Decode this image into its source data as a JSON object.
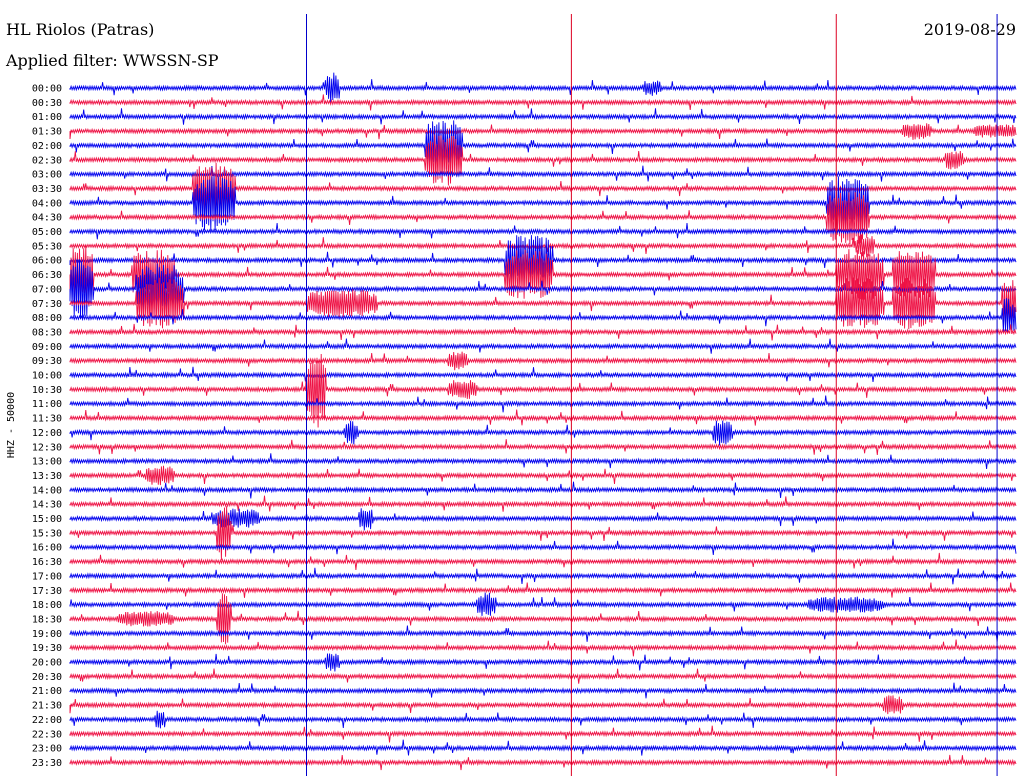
{
  "header": {
    "station": "HL Riolos (Patras)",
    "filter": "Applied filter: WWSSN-SP",
    "date": "2019-08-29"
  },
  "chart_data": {
    "type": "line",
    "title": "HL Riolos (Patras)",
    "subtitle": "Applied filter: WWSSN-SP",
    "ylabel": "HHZ - 50000",
    "xlabel": "",
    "colors": {
      "even_row": "#0000ee",
      "odd_row": "#ee1144",
      "marker": "#0000cc",
      "marker_red": "#dd0022"
    },
    "rows": [
      "00:00",
      "00:30",
      "01:00",
      "01:30",
      "02:00",
      "02:30",
      "03:00",
      "03:30",
      "04:00",
      "04:30",
      "05:00",
      "05:30",
      "06:00",
      "06:30",
      "07:00",
      "07:30",
      "08:00",
      "08:30",
      "09:00",
      "09:30",
      "10:00",
      "10:30",
      "11:00",
      "11:30",
      "12:00",
      "12:30",
      "13:00",
      "13:30",
      "14:00",
      "14:30",
      "15:00",
      "15:30",
      "16:00",
      "16:30",
      "17:00",
      "17:30",
      "18:00",
      "18:30",
      "19:00",
      "19:30",
      "20:00",
      "20:30",
      "21:00",
      "21:30",
      "22:00",
      "22:30",
      "23:00",
      "23:30"
    ],
    "minutes_per_row": 30,
    "bursts": [
      {
        "row": 0,
        "start": 0.54,
        "end": 0.57,
        "amp": 16
      },
      {
        "row": 0,
        "start": 1.21,
        "end": 1.25,
        "amp": 8
      },
      {
        "row": 3,
        "start": 1.76,
        "end": 1.82,
        "amp": 9
      },
      {
        "row": 3,
        "start": 1.91,
        "end": 2.02,
        "amp": 7
      },
      {
        "row": 4,
        "start": 0.75,
        "end": 0.83,
        "amp": 26
      },
      {
        "row": 5,
        "start": 0.75,
        "end": 0.83,
        "amp": 26
      },
      {
        "row": 5,
        "start": 1.85,
        "end": 1.89,
        "amp": 10
      },
      {
        "row": 7,
        "start": 0.26,
        "end": 0.35,
        "amp": 28
      },
      {
        "row": 8,
        "start": 0.26,
        "end": 0.35,
        "amp": 28
      },
      {
        "row": 8,
        "start": 1.6,
        "end": 1.69,
        "amp": 28
      },
      {
        "row": 9,
        "start": 1.6,
        "end": 1.69,
        "amp": 28
      },
      {
        "row": 11,
        "start": 1.66,
        "end": 1.7,
        "amp": 12
      },
      {
        "row": 12,
        "start": 0.92,
        "end": 1.02,
        "amp": 26
      },
      {
        "row": 13,
        "start": 0.0,
        "end": 0.05,
        "amp": 30
      },
      {
        "row": 13,
        "start": 0.13,
        "end": 0.22,
        "amp": 26
      },
      {
        "row": 13,
        "start": 0.92,
        "end": 1.02,
        "amp": 26
      },
      {
        "row": 13,
        "start": 1.62,
        "end": 1.72,
        "amp": 26
      },
      {
        "row": 13,
        "start": 1.74,
        "end": 1.83,
        "amp": 26
      },
      {
        "row": 14,
        "start": 0.0,
        "end": 0.05,
        "amp": 30
      },
      {
        "row": 14,
        "start": 0.14,
        "end": 0.24,
        "amp": 26
      },
      {
        "row": 15,
        "start": 0.14,
        "end": 0.24,
        "amp": 26
      },
      {
        "row": 15,
        "start": 0.5,
        "end": 0.65,
        "amp": 14
      },
      {
        "row": 15,
        "start": 1.62,
        "end": 1.72,
        "amp": 26
      },
      {
        "row": 15,
        "start": 1.74,
        "end": 1.83,
        "amp": 26
      },
      {
        "row": 15,
        "start": 1.97,
        "end": 2.0,
        "amp": 26
      },
      {
        "row": 16,
        "start": 1.97,
        "end": 2.0,
        "amp": 20
      },
      {
        "row": 19,
        "start": 0.8,
        "end": 0.84,
        "amp": 10
      },
      {
        "row": 21,
        "start": 0.5,
        "end": 0.54,
        "amp": 40
      },
      {
        "row": 21,
        "start": 0.8,
        "end": 0.86,
        "amp": 10
      },
      {
        "row": 24,
        "start": 0.58,
        "end": 0.61,
        "amp": 12
      },
      {
        "row": 24,
        "start": 1.36,
        "end": 1.4,
        "amp": 14
      },
      {
        "row": 27,
        "start": 0.16,
        "end": 0.22,
        "amp": 10
      },
      {
        "row": 30,
        "start": 0.3,
        "end": 0.4,
        "amp": 10
      },
      {
        "row": 30,
        "start": 0.61,
        "end": 0.64,
        "amp": 12
      },
      {
        "row": 31,
        "start": 0.31,
        "end": 0.34,
        "amp": 30
      },
      {
        "row": 36,
        "start": 0.86,
        "end": 0.9,
        "amp": 12
      },
      {
        "row": 36,
        "start": 1.56,
        "end": 1.72,
        "amp": 8
      },
      {
        "row": 37,
        "start": 0.1,
        "end": 0.22,
        "amp": 8
      },
      {
        "row": 37,
        "start": 0.31,
        "end": 0.34,
        "amp": 26
      },
      {
        "row": 40,
        "start": 0.54,
        "end": 0.57,
        "amp": 10
      },
      {
        "row": 43,
        "start": 1.72,
        "end": 1.76,
        "amp": 10
      },
      {
        "row": 44,
        "start": 0.18,
        "end": 0.2,
        "amp": 10
      }
    ],
    "markers": [
      {
        "pos": 0.25,
        "color": "blue"
      },
      {
        "pos": 0.53,
        "color": "red"
      },
      {
        "pos": 0.81,
        "color": "red"
      },
      {
        "pos": 0.98,
        "color": "blue"
      }
    ]
  }
}
